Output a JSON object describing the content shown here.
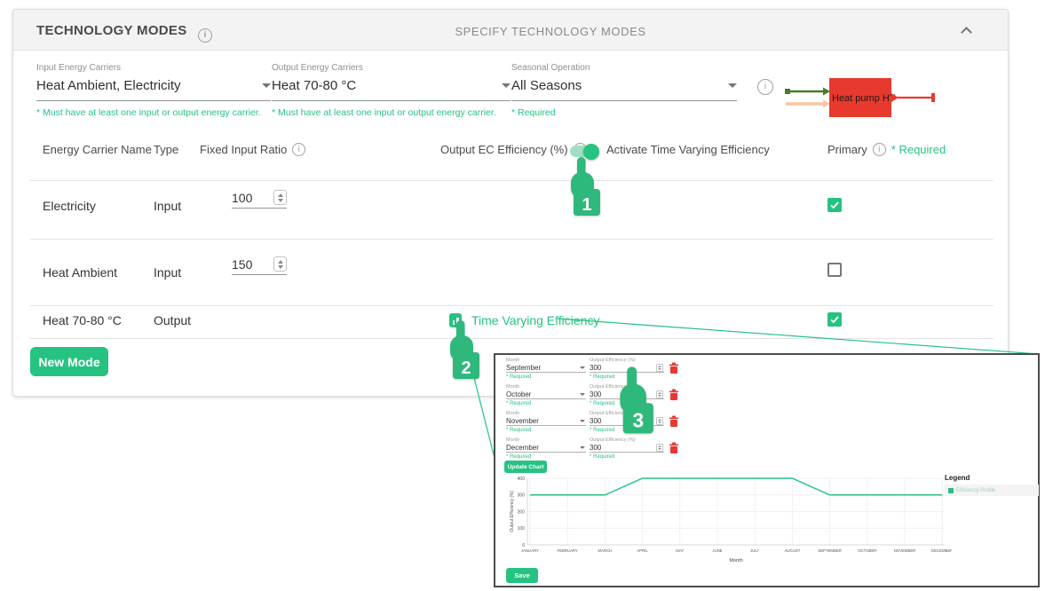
{
  "header": {
    "title": "TECHNOLOGY MODES",
    "subtitle": "SPECIFY TECHNOLOGY MODES"
  },
  "icons": {
    "info": "i"
  },
  "form": {
    "input_carriers": {
      "label": "Input Energy Carriers",
      "value": "Heat Ambient, Electricity",
      "helper": "* Must have at least one input or output energy carrier."
    },
    "output_carriers": {
      "label": "Output Energy Carriers",
      "value": "Heat 70-80 °C",
      "helper": "* Must have at least one input or output energy carrier."
    },
    "seasonal": {
      "label": "Seasonal Operation",
      "value": "All Seasons",
      "helper": "* Required"
    }
  },
  "diagram": {
    "label": "Heat pump HT"
  },
  "table": {
    "headers": {
      "name": "Energy Carrier Name",
      "type": "Type",
      "ratio": "Fixed Input Ratio",
      "efficiency": "Output EC Efficiency (%)",
      "activate": "Activate Time Varying Efficiency",
      "primary": "Primary",
      "required": "* Required"
    },
    "rows": [
      {
        "name": "Electricity",
        "type": "Input",
        "ratio": "100",
        "primary": true
      },
      {
        "name": "Heat Ambient",
        "type": "Input",
        "ratio": "150",
        "primary": false
      },
      {
        "name": "Heat 70-80 °C",
        "type": "Output",
        "link": "Time Varying Efficiency",
        "primary": true
      }
    ]
  },
  "new_mode_label": "New Mode",
  "overlay": {
    "rows": [
      {
        "month_label": "Month",
        "month": "September",
        "eff_label": "Output Efficiency (%)",
        "eff": "300",
        "required": "* Required"
      },
      {
        "month_label": "Month",
        "month": "October",
        "eff_label": "Output Efficiency (%)",
        "eff": "300",
        "required": "* Required"
      },
      {
        "month_label": "Month",
        "month": "November",
        "eff_label": "Output Efficiency (%)",
        "eff": "300",
        "required": "* Required"
      },
      {
        "month_label": "Month",
        "month": "December",
        "eff_label": "Output Efficiency (%)",
        "eff": "300",
        "required": "* Required"
      }
    ],
    "update_chart_label": "Update Chart",
    "save_label": "Save",
    "legend_title": "Legend",
    "legend_item": "Efficiency Profile"
  },
  "annotations": {
    "steps": [
      "1",
      "2",
      "3"
    ]
  },
  "chart_data": {
    "type": "line",
    "x": [
      "JANUARY",
      "FEBRUARY",
      "MARCH",
      "APRIL",
      "MAY",
      "JUNE",
      "JULY",
      "AUGUST",
      "SEPTEMBER",
      "OCTOBER",
      "NOVEMBER",
      "DECEMBER"
    ],
    "series": [
      {
        "name": "Efficiency Profile",
        "values": [
          300,
          300,
          300,
          400,
          400,
          400,
          400,
          400,
          300,
          300,
          300,
          300
        ]
      }
    ],
    "xlabel": "Month",
    "ylabel": "Output Efficiency [%]",
    "ylim": [
      0,
      400
    ],
    "yticks": [
      0,
      100,
      200,
      300,
      400
    ],
    "grid": true,
    "legend_position": "right",
    "line_color": "#26c281"
  },
  "colors": {
    "accent": "#26c281",
    "box_red": "#e8392e",
    "input_arrow_green": "#4e7a27",
    "input_arrow_peach": "#f7c6a3"
  }
}
